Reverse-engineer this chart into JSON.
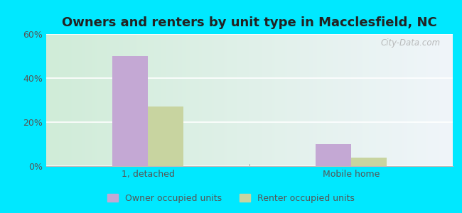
{
  "title": "Owners and renters by unit type in Macclesfield, NC",
  "categories": [
    "1, detached",
    "Mobile home"
  ],
  "owner_values": [
    50,
    10
  ],
  "renter_values": [
    27,
    4
  ],
  "owner_color": "#c4a8d4",
  "renter_color": "#c8d4a0",
  "ylim": [
    0,
    60
  ],
  "yticks": [
    0,
    20,
    40,
    60
  ],
  "ytick_labels": [
    "0%",
    "20%",
    "40%",
    "60%"
  ],
  "bar_width": 0.35,
  "group_positions": [
    1.0,
    3.0
  ],
  "outer_bg": "#00e8ff",
  "chart_bg_left": "#d0ecd8",
  "chart_bg_right": "#f0f5fa",
  "legend_owner": "Owner occupied units",
  "legend_renter": "Renter occupied units",
  "watermark": "City-Data.com",
  "title_fontsize": 13,
  "label_fontsize": 9,
  "tick_label_color": "#555555"
}
